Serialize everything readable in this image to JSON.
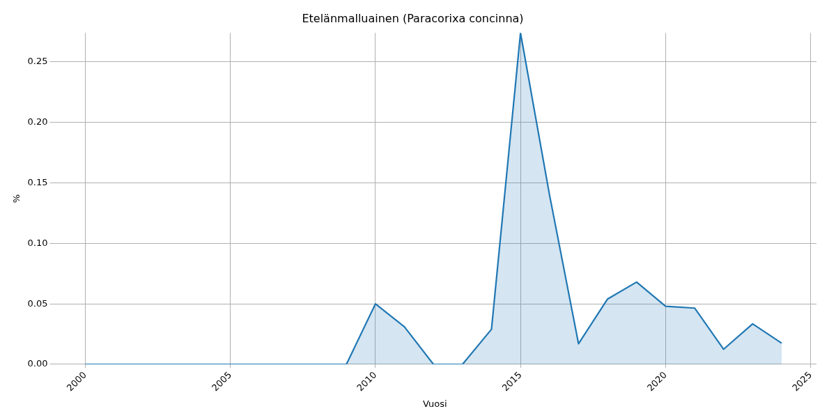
{
  "chart_data": {
    "type": "area",
    "title": "Etelänmalluainen (Paracorixa concinna)",
    "xlabel": "Vuosi",
    "ylabel": "%",
    "x": [
      2000,
      2001,
      2002,
      2003,
      2004,
      2005,
      2006,
      2007,
      2008,
      2009,
      2010,
      2011,
      2012,
      2013,
      2014,
      2015,
      2016,
      2017,
      2018,
      2019,
      2020,
      2021,
      2022,
      2023,
      2024
    ],
    "series": [
      {
        "color": "#1f77b4",
        "values": [
          0,
          0,
          0,
          0,
          0,
          0,
          0,
          0,
          0,
          0,
          0.05,
          0.031,
          0,
          0,
          0.029,
          0.274,
          0.14,
          0.017,
          0.054,
          0.068,
          0.048,
          0.0465,
          0.0125,
          0.0335,
          0.0175
        ]
      }
    ],
    "xlim": [
      1998.9,
      2025.2
    ],
    "xticks": [
      2000,
      2005,
      2010,
      2015,
      2020,
      2025
    ],
    "ylim": [
      0,
      0.274
    ],
    "yticks": [
      {
        "value": 0,
        "label": "0.00"
      },
      {
        "value": 0.05,
        "label": "0.05"
      },
      {
        "value": 0.1,
        "label": "0.10"
      },
      {
        "value": 0.15,
        "label": "0.15"
      },
      {
        "value": 0.2,
        "label": "0.20"
      },
      {
        "value": 0.25,
        "label": "0.25"
      }
    ],
    "grid": true,
    "legend": false,
    "marker": "none"
  }
}
